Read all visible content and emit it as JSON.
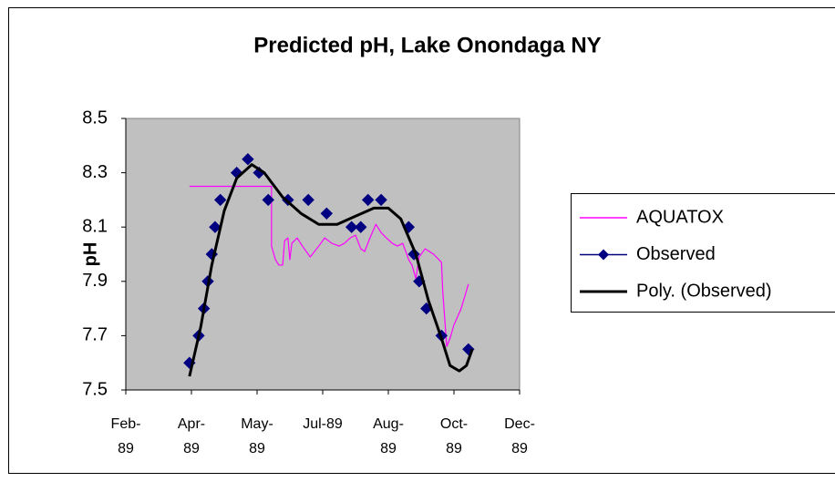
{
  "chart_data": {
    "type": "line",
    "title": "Predicted pH, Lake Onondaga NY",
    "y_label": "pH",
    "xlim": [
      0,
      6
    ],
    "xticks": [
      {
        "value": 0,
        "label": "Feb-89"
      },
      {
        "value": 1,
        "label": "Apr-89"
      },
      {
        "value": 2,
        "label": "May-89"
      },
      {
        "value": 3,
        "label": "Jul-89"
      },
      {
        "value": 4,
        "label": "Aug-89"
      },
      {
        "value": 5,
        "label": "Oct-89"
      },
      {
        "value": 6,
        "label": "Dec-89"
      }
    ],
    "ylim": [
      7.5,
      8.5
    ],
    "yticks": [
      7.5,
      7.7,
      7.9,
      8.1,
      8.3,
      8.5
    ],
    "grid": false,
    "legend": "right",
    "series": [
      {
        "name": "AQUATOX",
        "color": "#ff00ff",
        "line": true,
        "marker": null,
        "width": 1.2,
        "x": [
          0.97,
          2.22,
          2.22,
          2.28,
          2.33,
          2.39,
          2.42,
          2.47,
          2.5,
          2.53,
          2.61,
          2.69,
          2.81,
          2.94,
          3.03,
          3.14,
          3.25,
          3.33,
          3.42,
          3.5,
          3.58,
          3.64,
          3.72,
          3.81,
          3.89,
          3.97,
          4.06,
          4.14,
          4.22,
          4.31,
          4.36,
          4.42,
          4.47,
          4.56,
          4.69,
          4.81,
          4.83,
          4.89,
          4.94,
          5.0,
          5.11,
          5.22
        ],
        "values": [
          8.25,
          8.25,
          8.03,
          7.98,
          7.96,
          7.96,
          8.05,
          8.06,
          7.98,
          8.04,
          8.06,
          8.03,
          7.99,
          8.03,
          8.06,
          8.04,
          8.03,
          8.04,
          8.06,
          8.07,
          8.02,
          8.01,
          8.06,
          8.11,
          8.08,
          8.06,
          8.04,
          8.03,
          8.04,
          7.98,
          7.96,
          7.91,
          7.99,
          8.02,
          8.0,
          7.97,
          7.86,
          7.66,
          7.69,
          7.74,
          7.8,
          7.89
        ]
      },
      {
        "name": "Observed",
        "color": "#000080",
        "line": false,
        "marker": "diamond",
        "width": 1.5,
        "x": [
          0.97,
          1.11,
          1.19,
          1.25,
          1.31,
          1.36,
          1.44,
          1.69,
          1.86,
          2.03,
          2.17,
          2.47,
          2.78,
          3.06,
          3.44,
          3.58,
          3.69,
          3.89,
          4.31,
          4.39,
          4.47,
          4.58,
          4.81,
          5.22
        ],
        "values": [
          7.6,
          7.7,
          7.8,
          7.9,
          8.0,
          8.1,
          8.2,
          8.3,
          8.35,
          8.3,
          8.2,
          8.2,
          8.2,
          8.15,
          8.1,
          8.1,
          8.2,
          8.2,
          8.1,
          8.0,
          7.9,
          7.8,
          7.7,
          7.65
        ]
      },
      {
        "name": "Poly. (Observed)",
        "color": "#000000",
        "line": true,
        "marker": null,
        "width": 3,
        "x": [
          0.97,
          1.14,
          1.31,
          1.5,
          1.69,
          1.92,
          2.11,
          2.39,
          2.67,
          2.94,
          3.22,
          3.5,
          3.78,
          4.0,
          4.19,
          4.42,
          4.61,
          4.81,
          4.94,
          5.08,
          5.19,
          5.28
        ],
        "values": [
          7.55,
          7.73,
          7.96,
          8.16,
          8.28,
          8.33,
          8.3,
          8.21,
          8.15,
          8.11,
          8.11,
          8.14,
          8.17,
          8.17,
          8.13,
          8.0,
          7.83,
          7.69,
          7.59,
          7.57,
          7.59,
          7.65
        ]
      }
    ]
  }
}
